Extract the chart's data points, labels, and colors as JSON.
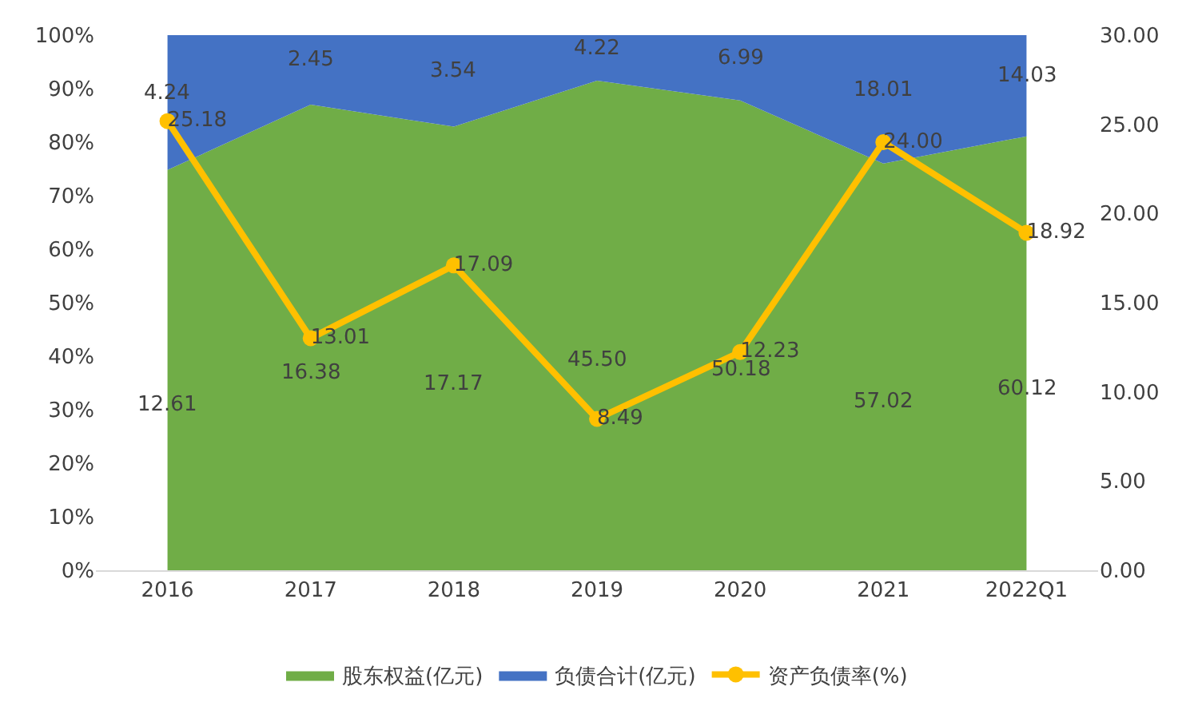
{
  "chart_data": {
    "type": "area",
    "stacked": true,
    "categories": [
      "2016",
      "2017",
      "2018",
      "2019",
      "2020",
      "2021",
      "2022Q1"
    ],
    "series": [
      {
        "name": "股东权益(亿元)",
        "color": "#70ad47",
        "values": [
          74.8,
          87.0,
          82.9,
          91.5,
          87.8,
          76.0,
          81.1
        ]
      },
      {
        "name": "负债合计(亿元)",
        "color": "#4472c4",
        "values": [
          25.2,
          13.0,
          17.1,
          8.5,
          12.2,
          24.0,
          18.9
        ]
      },
      {
        "name": "资产负债率(%)",
        "type": "line",
        "axis": "y2",
        "color": "#ffc000",
        "marker": "circle",
        "values": [
          25.18,
          13.01,
          17.09,
          8.49,
          12.23,
          24.0,
          18.92
        ],
        "value_labels": [
          "25.18",
          "13.01",
          "17.09",
          "8.49",
          "12.23",
          "24.00",
          "18.92"
        ]
      }
    ],
    "annotations": [
      "12.61",
      "16.38",
      "17.17",
      "45.50",
      "50.18",
      "57.02",
      "60.12",
      "4.24",
      "2.45",
      "3.54",
      "4.22",
      "6.99",
      "18.01",
      "14.03"
    ],
    "ylim": [
      0,
      100
    ],
    "yticks": [
      {
        "value": 0,
        "label": "0%"
      },
      {
        "value": 10,
        "label": "10%"
      },
      {
        "value": 20,
        "label": "20%"
      },
      {
        "value": 30,
        "label": "30%"
      },
      {
        "value": 40,
        "label": "40%"
      },
      {
        "value": 50,
        "label": "50%"
      },
      {
        "value": 60,
        "label": "60%"
      },
      {
        "value": 70,
        "label": "70%"
      },
      {
        "value": 80,
        "label": "80%"
      },
      {
        "value": 90,
        "label": "90%"
      },
      {
        "value": 100,
        "label": "100%"
      }
    ],
    "y2lim": [
      0,
      30
    ],
    "y2ticks": [
      {
        "value": 0,
        "label": "0.00"
      },
      {
        "value": 5,
        "label": "5.00"
      },
      {
        "value": 10,
        "label": "10.00"
      },
      {
        "value": 15,
        "label": "15.00"
      },
      {
        "value": 20,
        "label": "20.00"
      },
      {
        "value": 25,
        "label": "25.00"
      },
      {
        "value": 30,
        "label": "30.00"
      }
    ],
    "grid": false,
    "legend": "bottom"
  }
}
